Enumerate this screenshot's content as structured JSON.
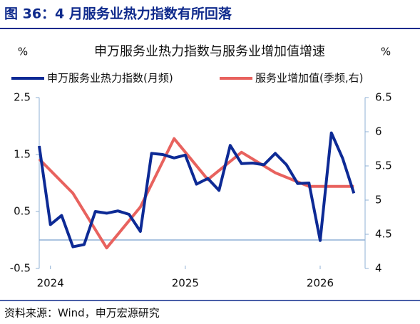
{
  "figure_title": "图 36：4 月服务业热力指数有所回落",
  "source": "资料来源：Wind，申万宏源研究",
  "chart_data": {
    "type": "line",
    "title": "申万服务业热力指数与服务业增加值增速",
    "y_label": "%",
    "y2_label": "%",
    "xlim": [
      2023.917,
      2026.333
    ],
    "xticks": [
      2024,
      2025,
      2026
    ],
    "ylim": [
      -0.5,
      2.5
    ],
    "yticks": [
      -0.5,
      0.5,
      1.5,
      2.5
    ],
    "y2lim": [
      4,
      6.5
    ],
    "y2ticks": [
      4,
      4.5,
      5,
      5.5,
      6,
      6.5
    ],
    "series": [
      {
        "name": "申万服务业热力指数(月频)",
        "color": "#0d2a95",
        "x": [
          2023.917,
          2024,
          2024.083,
          2024.167,
          2024.25,
          2024.333,
          2024.417,
          2024.5,
          2024.583,
          2024.667,
          2024.75,
          2024.833,
          2024.917,
          2025,
          2025.083,
          2025.167,
          2025.25,
          2025.333,
          2025.417,
          2025.5,
          2025.583,
          2025.667,
          2025.75,
          2025.833,
          2025.917,
          2026,
          2026.083,
          2026.167,
          2026.25
        ],
        "values": [
          1.65,
          0.27,
          0.43,
          -0.12,
          -0.08,
          0.5,
          0.47,
          0.51,
          0.45,
          0.15,
          1.52,
          1.5,
          1.44,
          1.49,
          0.98,
          1.08,
          0.87,
          1.66,
          1.34,
          1.35,
          1.32,
          1.52,
          1.32,
          0.99,
          1.0,
          -0.01,
          1.88,
          1.43,
          0.82
        ]
      },
      {
        "name": "服务业增加值(季频,右)",
        "color": "#e8625e",
        "axis": "y2",
        "x": [
          2023.917,
          2024.167,
          2024.417,
          2024.667,
          2024.917,
          2025.167,
          2025.417,
          2025.667,
          2025.917,
          2026.167,
          2026.25
        ],
        "values": [
          5.6,
          5.1,
          4.3,
          4.9,
          5.9,
          5.3,
          5.7,
          5.4,
          5.2,
          5.2,
          5.2
        ]
      }
    ]
  }
}
